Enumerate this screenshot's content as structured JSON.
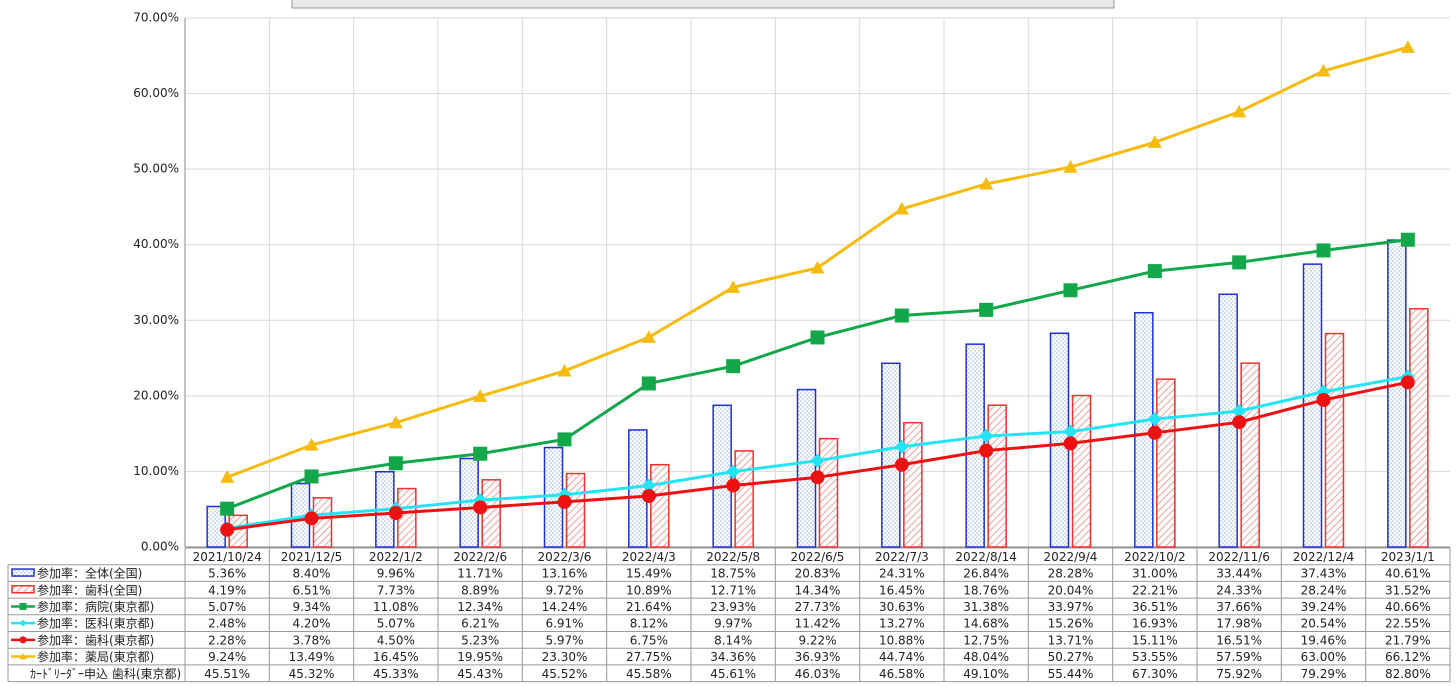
{
  "chart_data": {
    "type": "combo",
    "categories": [
      "2021/10/24",
      "2021/12/5",
      "2022/1/2",
      "2022/2/6",
      "2022/3/6",
      "2022/4/3",
      "2022/5/8",
      "2022/6/5",
      "2022/7/3",
      "2022/8/14",
      "2022/9/4",
      "2022/10/2",
      "2022/11/6",
      "2022/12/4",
      "2023/1/1"
    ],
    "ylim": [
      0,
      70
    ],
    "yticks": [
      {
        "value": 0,
        "label": "0.00%"
      },
      {
        "value": 10,
        "label": "10.00%"
      },
      {
        "value": 20,
        "label": "20.00%"
      },
      {
        "value": 30,
        "label": "30.00%"
      },
      {
        "value": 40,
        "label": "40.00%"
      },
      {
        "value": 50,
        "label": "50.00%"
      },
      {
        "value": 60,
        "label": "60.00%"
      },
      {
        "value": 70,
        "label": "70.00%"
      }
    ],
    "grid": true,
    "series": [
      {
        "name": "参加率：全体(全国)",
        "type": "bar",
        "color": "#1f2fd6",
        "values": [
          5.36,
          8.4,
          9.96,
          11.71,
          13.16,
          15.49,
          18.75,
          20.83,
          24.31,
          26.84,
          28.28,
          31.0,
          33.44,
          37.43,
          40.61
        ],
        "value_labels": [
          "5.36%",
          "8.40%",
          "9.96%",
          "11.71%",
          "13.16%",
          "15.49%",
          "18.75%",
          "20.83%",
          "24.31%",
          "26.84%",
          "28.28%",
          "31.00%",
          "33.44%",
          "37.43%",
          "40.61%"
        ]
      },
      {
        "name": "参加率：歯科(全国)",
        "type": "bar",
        "color": "#f03030",
        "values": [
          4.19,
          6.51,
          7.73,
          8.89,
          9.72,
          10.89,
          12.71,
          14.34,
          16.45,
          18.76,
          20.04,
          22.21,
          24.33,
          28.24,
          31.52
        ],
        "value_labels": [
          "4.19%",
          "6.51%",
          "7.73%",
          "8.89%",
          "9.72%",
          "10.89%",
          "12.71%",
          "14.34%",
          "16.45%",
          "18.76%",
          "20.04%",
          "22.21%",
          "24.33%",
          "28.24%",
          "31.52%"
        ]
      },
      {
        "name": "参加率：病院(東京都)",
        "type": "line",
        "marker": "square",
        "color": "#12a84a",
        "values": [
          5.07,
          9.34,
          11.08,
          12.34,
          14.24,
          21.64,
          23.93,
          27.73,
          30.63,
          31.38,
          33.97,
          36.51,
          37.66,
          39.24,
          40.66
        ],
        "value_labels": [
          "5.07%",
          "9.34%",
          "11.08%",
          "12.34%",
          "14.24%",
          "21.64%",
          "23.93%",
          "27.73%",
          "30.63%",
          "31.38%",
          "33.97%",
          "36.51%",
          "37.66%",
          "39.24%",
          "40.66%"
        ]
      },
      {
        "name": "参加率：医科(東京都)",
        "type": "line",
        "marker": "diamond",
        "color": "#22e4f4",
        "values": [
          2.48,
          4.2,
          5.07,
          6.21,
          6.91,
          8.12,
          9.97,
          11.42,
          13.27,
          14.68,
          15.26,
          16.93,
          17.98,
          20.54,
          22.55
        ],
        "value_labels": [
          "2.48%",
          "4.20%",
          "5.07%",
          "6.21%",
          "6.91%",
          "8.12%",
          "9.97%",
          "11.42%",
          "13.27%",
          "14.68%",
          "15.26%",
          "16.93%",
          "17.98%",
          "20.54%",
          "22.55%"
        ]
      },
      {
        "name": "参加率：歯科(東京都)",
        "type": "line",
        "marker": "circle",
        "color": "#ee1111",
        "values": [
          2.28,
          3.78,
          4.5,
          5.23,
          5.97,
          6.75,
          8.14,
          9.22,
          10.88,
          12.75,
          13.71,
          15.11,
          16.51,
          19.46,
          21.79
        ],
        "value_labels": [
          "2.28%",
          "3.78%",
          "4.50%",
          "5.23%",
          "5.97%",
          "6.75%",
          "8.14%",
          "9.22%",
          "10.88%",
          "12.75%",
          "13.71%",
          "15.11%",
          "16.51%",
          "19.46%",
          "21.79%"
        ]
      },
      {
        "name": "参加率：薬局(東京都)",
        "type": "line",
        "marker": "triangle",
        "color": "#f7bb10",
        "values": [
          9.24,
          13.49,
          16.45,
          19.95,
          23.3,
          27.75,
          34.36,
          36.93,
          44.74,
          48.04,
          50.27,
          53.55,
          57.59,
          63.0,
          66.12
        ],
        "value_labels": [
          "9.24%",
          "13.49%",
          "16.45%",
          "19.95%",
          "23.30%",
          "27.75%",
          "34.36%",
          "36.93%",
          "44.74%",
          "48.04%",
          "50.27%",
          "53.55%",
          "57.59%",
          "63.00%",
          "66.12%"
        ]
      },
      {
        "name": "ｶｰﾄﾞﾘｰﾀﾞｰ申込 歯科(東京都)",
        "type": "table",
        "values": [
          45.51,
          45.32,
          45.33,
          45.43,
          45.52,
          45.58,
          45.61,
          46.03,
          46.58,
          49.1,
          55.44,
          67.3,
          75.92,
          79.29,
          82.8
        ],
        "value_labels": [
          "45.51%",
          "45.32%",
          "45.33%",
          "45.43%",
          "45.52%",
          "45.58%",
          "45.61%",
          "46.03%",
          "46.58%",
          "49.10%",
          "55.44%",
          "67.30%",
          "75.92%",
          "79.29%",
          "82.80%"
        ]
      }
    ]
  }
}
